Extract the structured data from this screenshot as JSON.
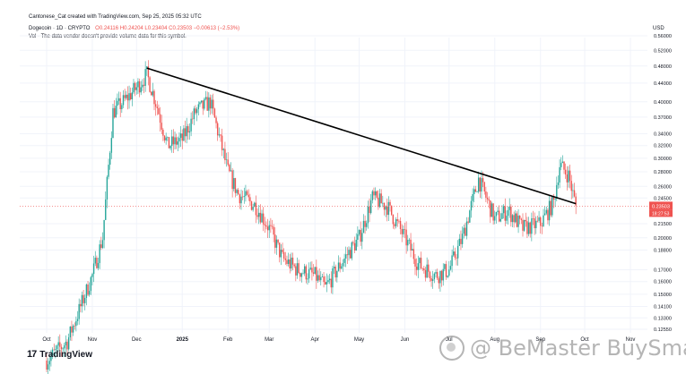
{
  "header": {
    "attribution": "Cantonese_Cat created with TradingView.com, Sep 25, 2025 05:32 UTC",
    "symbol": "Dogecoin · 1D · CRYPTO",
    "ohlc": "O0.24116 H0.24204 L0.23404 C0.23503 −0.00613 (−2.53%)",
    "volume_note": "Vol · The data vendor doesn't provide volume data for this symbol.",
    "currency": "USD"
  },
  "branding": {
    "logo_text": "17",
    "name": "TradingView"
  },
  "watermark": {
    "text": "@ BeMaster BuySmart",
    "icon": "coin-icon"
  },
  "colors": {
    "up": "#26a69a",
    "down": "#ef5350",
    "trendline": "#000000",
    "price_tag": "#ef5350"
  },
  "chart_data": {
    "type": "candlestick",
    "y_scale": "log",
    "x_ticks": [
      "Oct",
      "Nov",
      "Dec",
      "2025",
      "Feb",
      "Mar",
      "Apr",
      "May",
      "Jun",
      "Jul",
      "Aug",
      "Sep",
      "Oct",
      "Nov"
    ],
    "y_ticks": [
      "0.56000",
      "0.52000",
      "0.48000",
      "0.44000",
      "0.40000",
      "0.37000",
      "0.34000",
      "0.32000",
      "0.30000",
      "0.28000",
      "0.26000",
      "0.24500",
      "0.21500",
      "0.20000",
      "0.18800",
      "0.17000",
      "0.16000",
      "0.15000",
      "0.14100",
      "0.13300",
      "0.12550"
    ],
    "last_price": "0.23503",
    "countdown": "18:27:53",
    "grid": true,
    "x": [
      "2024-10-01",
      "2024-10-15",
      "2024-11-01",
      "2024-11-08",
      "2024-11-15",
      "2024-11-22",
      "2024-12-01",
      "2024-12-08",
      "2024-12-15",
      "2024-12-22",
      "2025-01-01",
      "2025-01-10",
      "2025-01-20",
      "2025-02-01",
      "2025-02-08",
      "2025-02-20",
      "2025-03-01",
      "2025-03-10",
      "2025-03-20",
      "2025-04-01",
      "2025-04-08",
      "2025-04-20",
      "2025-05-01",
      "2025-05-10",
      "2025-05-20",
      "2025-06-01",
      "2025-06-10",
      "2025-06-22",
      "2025-07-01",
      "2025-07-10",
      "2025-07-21",
      "2025-08-01",
      "2025-08-10",
      "2025-08-20",
      "2025-09-01",
      "2025-09-10",
      "2025-09-14",
      "2025-09-20",
      "2025-09-25"
    ],
    "y": [
      0.107,
      0.118,
      0.165,
      0.2,
      0.38,
      0.4,
      0.43,
      0.46,
      0.39,
      0.32,
      0.33,
      0.38,
      0.4,
      0.28,
      0.25,
      0.235,
      0.21,
      0.18,
      0.17,
      0.165,
      0.155,
      0.178,
      0.2,
      0.245,
      0.235,
      0.2,
      0.175,
      0.165,
      0.17,
      0.2,
      0.27,
      0.22,
      0.23,
      0.21,
      0.215,
      0.24,
      0.29,
      0.275,
      0.235
    ],
    "trendline": [
      {
        "x": "2024-12-08",
        "y": 0.475
      },
      {
        "x": "2025-09-25",
        "y": 0.238
      }
    ]
  }
}
